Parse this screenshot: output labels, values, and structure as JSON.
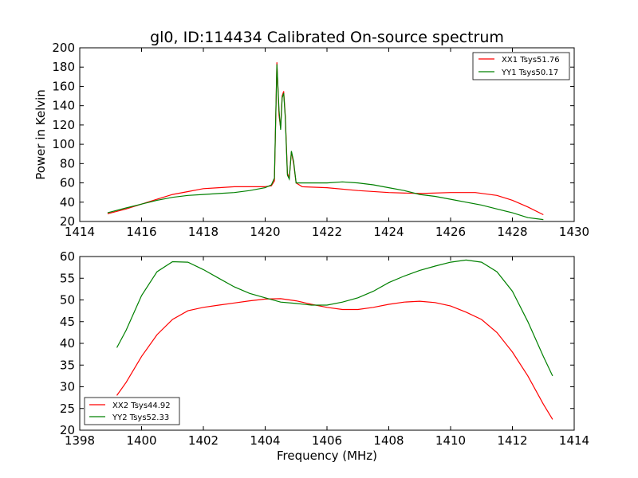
{
  "figure_title": "gl0, ID:114434 Calibrated On-source spectrum",
  "chart_data": [
    {
      "type": "line",
      "title": "gl0, ID:114434 Calibrated On-source spectrum",
      "xlabel": "",
      "ylabel": "Power in Kelvin",
      "xlim": [
        1414,
        1430
      ],
      "ylim": [
        20,
        200
      ],
      "xticks": [
        "1414",
        "1416",
        "1418",
        "1420",
        "1422",
        "1424",
        "1426",
        "1428",
        "1430"
      ],
      "yticks": [
        "20",
        "40",
        "60",
        "80",
        "100",
        "120",
        "140",
        "160",
        "180",
        "200"
      ],
      "legend_position": "top-right",
      "grid": false,
      "series": [
        {
          "name": "XX1 Tsys51.76",
          "color": "#ff0000",
          "points": [
            [
              1414.9,
              28
            ],
            [
              1415.5,
              33
            ],
            [
              1416.0,
              38
            ],
            [
              1416.5,
              43
            ],
            [
              1417.0,
              48
            ],
            [
              1417.5,
              51
            ],
            [
              1418.0,
              54
            ],
            [
              1418.5,
              55
            ],
            [
              1419.0,
              56
            ],
            [
              1419.5,
              56
            ],
            [
              1420.0,
              56
            ],
            [
              1420.2,
              57
            ],
            [
              1420.3,
              62
            ],
            [
              1420.38,
              185
            ],
            [
              1420.45,
              130
            ],
            [
              1420.5,
              117
            ],
            [
              1420.55,
              150
            ],
            [
              1420.6,
              155
            ],
            [
              1420.65,
              130
            ],
            [
              1420.72,
              70
            ],
            [
              1420.78,
              65
            ],
            [
              1420.85,
              92
            ],
            [
              1420.92,
              80
            ],
            [
              1421.0,
              60
            ],
            [
              1421.2,
              56
            ],
            [
              1422.0,
              55
            ],
            [
              1423.0,
              52
            ],
            [
              1424.0,
              50
            ],
            [
              1425.0,
              49
            ],
            [
              1426.0,
              50
            ],
            [
              1426.8,
              50
            ],
            [
              1427.5,
              47
            ],
            [
              1428.0,
              42
            ],
            [
              1428.5,
              35
            ],
            [
              1429.0,
              27
            ]
          ]
        },
        {
          "name": "YY1 Tsys50.17",
          "color": "#008000",
          "points": [
            [
              1414.9,
              29
            ],
            [
              1415.5,
              34
            ],
            [
              1416.0,
              38
            ],
            [
              1416.5,
              42
            ],
            [
              1417.0,
              45
            ],
            [
              1417.5,
              47
            ],
            [
              1418.0,
              48
            ],
            [
              1418.5,
              49
            ],
            [
              1419.0,
              50
            ],
            [
              1419.5,
              52
            ],
            [
              1420.0,
              55
            ],
            [
              1420.2,
              58
            ],
            [
              1420.3,
              65
            ],
            [
              1420.38,
              183
            ],
            [
              1420.45,
              135
            ],
            [
              1420.5,
              115
            ],
            [
              1420.55,
              148
            ],
            [
              1420.6,
              153
            ],
            [
              1420.65,
              128
            ],
            [
              1420.72,
              68
            ],
            [
              1420.78,
              64
            ],
            [
              1420.85,
              93
            ],
            [
              1420.92,
              82
            ],
            [
              1421.0,
              60
            ],
            [
              1421.5,
              60
            ],
            [
              1422.0,
              60
            ],
            [
              1422.5,
              61
            ],
            [
              1423.0,
              60
            ],
            [
              1423.5,
              58
            ],
            [
              1424.0,
              55
            ],
            [
              1424.5,
              52
            ],
            [
              1425.0,
              48
            ],
            [
              1425.5,
              46
            ],
            [
              1426.0,
              43
            ],
            [
              1426.5,
              40
            ],
            [
              1427.0,
              37
            ],
            [
              1427.5,
              33
            ],
            [
              1428.0,
              29
            ],
            [
              1428.5,
              24
            ],
            [
              1429.0,
              22
            ]
          ]
        }
      ]
    },
    {
      "type": "line",
      "title": "",
      "xlabel": "Frequency (MHz)",
      "ylabel": "",
      "xlim": [
        1398,
        1414
      ],
      "ylim": [
        20,
        60
      ],
      "xticks": [
        "1398",
        "1400",
        "1402",
        "1404",
        "1406",
        "1408",
        "1410",
        "1412",
        "1414"
      ],
      "yticks": [
        "20",
        "25",
        "30",
        "35",
        "40",
        "45",
        "50",
        "55",
        "60"
      ],
      "legend_position": "bottom-left",
      "grid": false,
      "series": [
        {
          "name": "XX2 Tsys44.92",
          "color": "#ff0000",
          "points": [
            [
              1399.2,
              28
            ],
            [
              1399.5,
              31
            ],
            [
              1400.0,
              37
            ],
            [
              1400.5,
              42
            ],
            [
              1401.0,
              45.5
            ],
            [
              1401.5,
              47.5
            ],
            [
              1402.0,
              48.3
            ],
            [
              1402.5,
              48.8
            ],
            [
              1403.0,
              49.3
            ],
            [
              1403.5,
              49.8
            ],
            [
              1404.0,
              50.2
            ],
            [
              1404.5,
              50.3
            ],
            [
              1405.0,
              49.8
            ],
            [
              1405.5,
              49
            ],
            [
              1406.0,
              48.3
            ],
            [
              1406.5,
              47.8
            ],
            [
              1407.0,
              47.8
            ],
            [
              1407.5,
              48.3
            ],
            [
              1408.0,
              49
            ],
            [
              1408.5,
              49.5
            ],
            [
              1409.0,
              49.7
            ],
            [
              1409.5,
              49.4
            ],
            [
              1410.0,
              48.6
            ],
            [
              1410.5,
              47.2
            ],
            [
              1411.0,
              45.5
            ],
            [
              1411.5,
              42.5
            ],
            [
              1412.0,
              38
            ],
            [
              1412.5,
              32.5
            ],
            [
              1413.0,
              26
            ],
            [
              1413.3,
              22.5
            ]
          ]
        },
        {
          "name": "YY2 Tsys52.33",
          "color": "#008000",
          "points": [
            [
              1399.2,
              39
            ],
            [
              1399.5,
              43
            ],
            [
              1400.0,
              51
            ],
            [
              1400.5,
              56.5
            ],
            [
              1401.0,
              58.8
            ],
            [
              1401.5,
              58.7
            ],
            [
              1402.0,
              57
            ],
            [
              1402.5,
              55
            ],
            [
              1403.0,
              53
            ],
            [
              1403.5,
              51.5
            ],
            [
              1404.0,
              50.5
            ],
            [
              1404.5,
              49.5
            ],
            [
              1405.0,
              49.2
            ],
            [
              1405.5,
              48.8
            ],
            [
              1406.0,
              48.8
            ],
            [
              1406.5,
              49.5
            ],
            [
              1407.0,
              50.5
            ],
            [
              1407.5,
              52
            ],
            [
              1408.0,
              54
            ],
            [
              1408.5,
              55.5
            ],
            [
              1409.0,
              56.8
            ],
            [
              1409.5,
              57.8
            ],
            [
              1410.0,
              58.7
            ],
            [
              1410.5,
              59.2
            ],
            [
              1411.0,
              58.7
            ],
            [
              1411.5,
              56.5
            ],
            [
              1412.0,
              52
            ],
            [
              1412.5,
              45
            ],
            [
              1413.0,
              37
            ],
            [
              1413.3,
              32.5
            ]
          ]
        }
      ]
    }
  ]
}
